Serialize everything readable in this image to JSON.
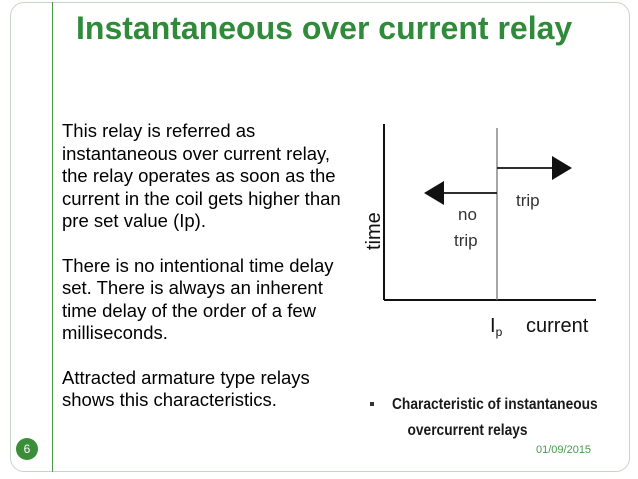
{
  "slide": {
    "title": "Instantaneous over current relay",
    "paragraphs": [
      "This relay is referred as instantaneous over current relay,  the relay operates as soon as the current in the coil gets higher than  pre set value (Ip).",
      "There is no intentional time delay set.  There is always an inherent time delay  of the order of a few milliseconds.",
      "Attracted armature type relays shows this characteristics."
    ],
    "slide_number": "6",
    "date": "01/09/2015"
  },
  "diagram": {
    "y_axis_label": "time",
    "x_axis_label": "current",
    "threshold_label": "I",
    "threshold_subscript": "p",
    "region_no_trip_line1": "no",
    "region_no_trip_line2": "trip",
    "region_trip": "trip",
    "caption_line1": "Characteristic of instantaneous",
    "caption_line2": "overcurrent relays"
  }
}
